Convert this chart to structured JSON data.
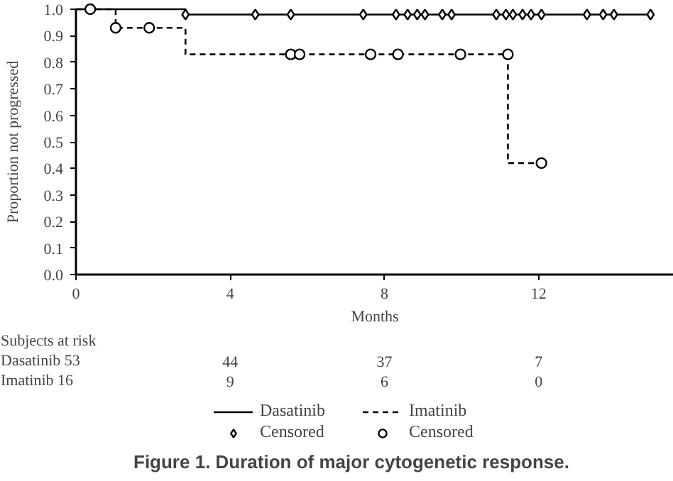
{
  "chart_data": {
    "type": "step",
    "title": "Figure 1. Duration of major cytogenetic response.",
    "xlabel": "Months",
    "ylabel": "Proportion not progressed",
    "xlim": [
      0,
      15.5
    ],
    "xticks": [
      0,
      4,
      8,
      12
    ],
    "ylim": [
      0,
      1.0
    ],
    "yticks": [
      {
        "value": 0,
        "label": "0.0"
      },
      0.1,
      0.2,
      0.3,
      0.4,
      0.5,
      0.6,
      0.7,
      0.8,
      0.9,
      {
        "value": 1,
        "label": "1.0"
      }
    ],
    "grid": false,
    "legend": "bottom",
    "annotations": [
      "Subjects at risk",
      "Dasatinib 53",
      "44",
      "37",
      "7",
      "Imatinib   16",
      "9",
      "6",
      "0"
    ],
    "series": [
      {
        "name": "Dasatinib",
        "color": "#000000",
        "line_style": "solid",
        "x": [
          0,
          2.84,
          14.9
        ],
        "values": [
          1.0,
          0.98,
          0.98
        ]
      },
      {
        "name": "Imatinib",
        "color": "#000000",
        "line_style": "dashed",
        "x": [
          0,
          1.03,
          2.84,
          11.2,
          12.07
        ],
        "values": [
          1.0,
          0.93,
          0.83,
          0.42,
          0.42
        ]
      },
      {
        "name": "Censored",
        "type": "scatter",
        "color": "#000000",
        "marker": "diamond",
        "x": [
          2.84,
          4.65,
          5.57,
          7.45,
          8.3,
          8.6,
          8.85,
          9.05,
          9.5,
          9.74,
          10.9,
          11.15,
          11.33,
          11.58,
          11.8,
          12.07,
          13.25,
          13.67,
          13.95,
          14.9
        ],
        "values": [
          0.98,
          0.98,
          0.98,
          0.98,
          0.98,
          0.98,
          0.98,
          0.98,
          0.98,
          0.98,
          0.98,
          0.98,
          0.98,
          0.98,
          0.98,
          0.98,
          0.98,
          0.98,
          0.98,
          0.98
        ]
      },
      {
        "name": "Censored",
        "type": "scatter",
        "color": "#000000",
        "marker": "circle",
        "x": [
          0.37,
          1.03,
          1.9,
          5.57,
          5.8,
          7.64,
          8.35,
          9.97,
          11.2,
          12.07
        ],
        "values": [
          1.0,
          0.93,
          0.93,
          0.83,
          0.83,
          0.83,
          0.83,
          0.83,
          0.83,
          0.42
        ]
      }
    ]
  }
}
